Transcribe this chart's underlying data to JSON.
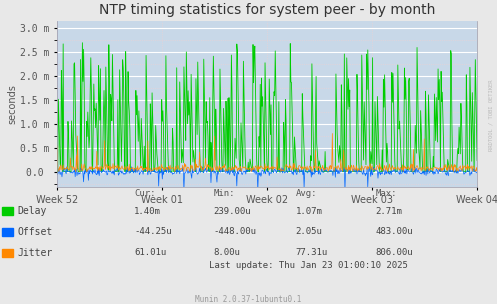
{
  "title": "NTP timing statistics for system peer - by month",
  "ylabel": "seconds",
  "background_color": "#e8e8e8",
  "plot_bg_color": "#c8d8e8",
  "grid_color": "#ffffff",
  "grid_minor_color": "#f0d0d0",
  "ylim": [
    -0.32,
    3.15
  ],
  "yticks": [
    0.0,
    0.5,
    1.0,
    1.5,
    2.0,
    2.5,
    3.0
  ],
  "ytick_labels": [
    "0.0 ",
    "0.5 m",
    "1.0 m",
    "1.5 m",
    "2.0 m",
    "2.5 m",
    "3.0 m"
  ],
  "xtick_labels": [
    "Week 52",
    "Week 01",
    "Week 02",
    "Week 03",
    "Week 04"
  ],
  "legend_entries": [
    {
      "label": "Delay",
      "color": "#00cc00"
    },
    {
      "label": "Offset",
      "color": "#0066ff"
    },
    {
      "label": "Jitter",
      "color": "#ff8800"
    }
  ],
  "stats_headers": [
    "Cur:",
    "Min:",
    "Avg:",
    "Max:"
  ],
  "stats_rows": [
    [
      "1.40m",
      "239.00u",
      "1.07m",
      "2.71m"
    ],
    [
      "-44.25u",
      "-448.00u",
      "2.05u",
      "483.00u"
    ],
    [
      "61.01u",
      "8.00u",
      "77.31u",
      "806.00u"
    ]
  ],
  "last_update": "Last update: Thu Jan 23 01:00:10 2025",
  "munin_version": "Munin 2.0.37-1ubuntu0.1",
  "rrdtool_label": "RRDTOOL / TOBI OETIKER",
  "delay_color": "#00cc00",
  "offset_color": "#0066ff",
  "jitter_color": "#ff8800",
  "title_fontsize": 10,
  "axis_fontsize": 7,
  "legend_fontsize": 7,
  "stats_fontsize": 6.5
}
